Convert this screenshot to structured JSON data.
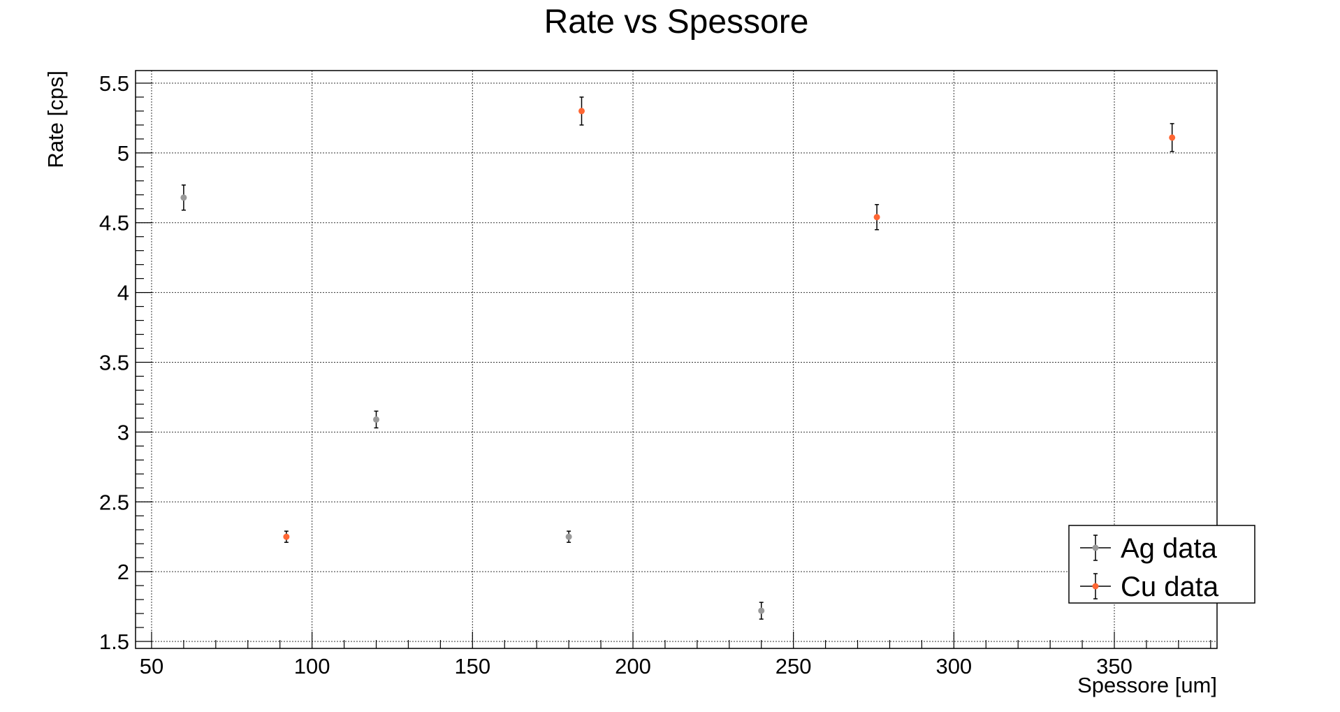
{
  "chart_data": {
    "type": "scatter",
    "title": "Rate vs Spessore",
    "xlabel": "Spessore [um]",
    "ylabel": "Rate [cps]",
    "xlim": [
      45,
      382
    ],
    "ylim": [
      1.45,
      5.59
    ],
    "xticks": [
      {
        "value": 50,
        "label": "50"
      },
      {
        "value": 100,
        "label": "100"
      },
      {
        "value": 150,
        "label": "150"
      },
      {
        "value": 200,
        "label": "200"
      },
      {
        "value": 250,
        "label": "250"
      },
      {
        "value": 300,
        "label": "300"
      },
      {
        "value": 350,
        "label": "350"
      }
    ],
    "yticks": [
      {
        "value": 1.5,
        "label": "1.5"
      },
      {
        "value": 2,
        "label": "2"
      },
      {
        "value": 2.5,
        "label": "2.5"
      },
      {
        "value": 3,
        "label": "3"
      },
      {
        "value": 3.5,
        "label": "3.5"
      },
      {
        "value": 4,
        "label": "4"
      },
      {
        "value": 4.5,
        "label": "4.5"
      },
      {
        "value": 5,
        "label": "5"
      },
      {
        "value": 5.5,
        "label": "5.5"
      }
    ],
    "grid": true,
    "legend_position": "bottom-right",
    "series": [
      {
        "name": "Ag data",
        "color": "#999999",
        "points": [
          {
            "x": 60,
            "y": 4.68,
            "err": 0.09
          },
          {
            "x": 120,
            "y": 3.09,
            "err": 0.06
          },
          {
            "x": 180,
            "y": 2.25,
            "err": 0.04
          },
          {
            "x": 240,
            "y": 1.72,
            "err": 0.06
          }
        ]
      },
      {
        "name": "Cu data",
        "color": "#ff6633",
        "points": [
          {
            "x": 92,
            "y": 2.25,
            "err": 0.04
          },
          {
            "x": 184,
            "y": 5.3,
            "err": 0.1
          },
          {
            "x": 276,
            "y": 4.54,
            "err": 0.09
          },
          {
            "x": 368,
            "y": 5.11,
            "err": 0.1
          }
        ]
      }
    ]
  }
}
